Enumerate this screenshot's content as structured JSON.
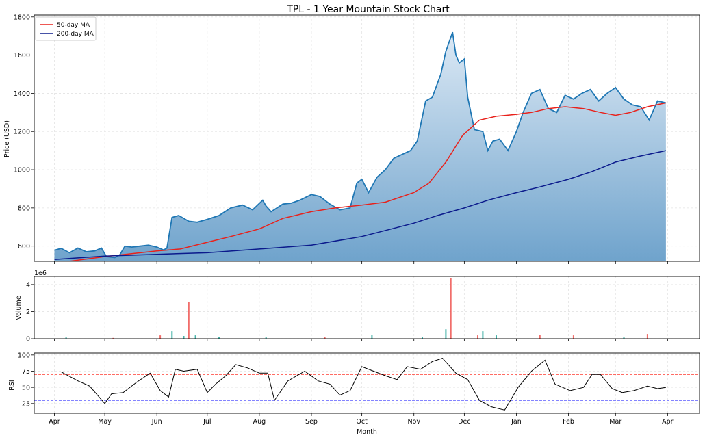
{
  "chart_data": [
    {
      "type": "area",
      "panel": "price",
      "title": "TPL - 1 Year Mountain Stock Chart",
      "ylabel": "Price (USD)",
      "ylim": [
        520,
        1810
      ],
      "yticks": [
        600,
        800,
        1000,
        1200,
        1400,
        1600,
        1800
      ],
      "grid": true,
      "legend": {
        "placement": "top-left",
        "entries": [
          "50-day MA",
          "200-day MA"
        ]
      },
      "colors": {
        "price": "#1f77b4",
        "ma50": "#e8211b",
        "ma200": "#0b1a8c",
        "fill_top": "#dce9f5",
        "fill_bottom": "#6fa3cc"
      },
      "series": [
        {
          "name": "Price",
          "x": [
            "2024-04-01",
            "2024-04-05",
            "2024-04-10",
            "2024-04-15",
            "2024-04-20",
            "2024-04-25",
            "2024-04-29",
            "2024-05-02",
            "2024-05-07",
            "2024-05-10",
            "2024-05-13",
            "2024-05-17",
            "2024-05-22",
            "2024-05-27",
            "2024-06-01",
            "2024-06-05",
            "2024-06-07",
            "2024-06-10",
            "2024-06-14",
            "2024-06-20",
            "2024-06-25",
            "2024-07-01",
            "2024-07-08",
            "2024-07-15",
            "2024-07-22",
            "2024-07-28",
            "2024-08-03",
            "2024-08-05",
            "2024-08-08",
            "2024-08-15",
            "2024-08-20",
            "2024-08-25",
            "2024-09-01",
            "2024-09-06",
            "2024-09-12",
            "2024-09-18",
            "2024-09-24",
            "2024-09-28",
            "2024-10-01",
            "2024-10-05",
            "2024-10-10",
            "2024-10-15",
            "2024-10-20",
            "2024-10-25",
            "2024-10-30",
            "2024-11-03",
            "2024-11-08",
            "2024-11-12",
            "2024-11-17",
            "2024-11-20",
            "2024-11-24",
            "2024-11-26",
            "2024-11-28",
            "2024-12-01",
            "2024-12-03",
            "2024-12-07",
            "2024-12-12",
            "2024-12-15",
            "2024-12-18",
            "2024-12-22",
            "2024-12-27",
            "2025-01-01",
            "2025-01-05",
            "2025-01-10",
            "2025-01-15",
            "2025-01-20",
            "2025-01-25",
            "2025-01-30",
            "2025-02-04",
            "2025-02-09",
            "2025-02-14",
            "2025-02-19",
            "2025-02-24",
            "2025-03-01",
            "2025-03-06",
            "2025-03-11",
            "2025-03-16",
            "2025-03-21",
            "2025-03-26",
            "2025-03-31"
          ],
          "values": [
            578,
            588,
            565,
            590,
            570,
            575,
            590,
            545,
            540,
            555,
            600,
            595,
            600,
            605,
            595,
            580,
            590,
            750,
            760,
            730,
            725,
            740,
            760,
            800,
            815,
            790,
            840,
            810,
            780,
            820,
            825,
            840,
            870,
            860,
            820,
            790,
            800,
            930,
            950,
            880,
            960,
            1000,
            1060,
            1080,
            1100,
            1150,
            1360,
            1380,
            1500,
            1620,
            1720,
            1600,
            1560,
            1580,
            1380,
            1210,
            1200,
            1100,
            1150,
            1160,
            1100,
            1200,
            1300,
            1400,
            1420,
            1320,
            1300,
            1390,
            1370,
            1400,
            1420,
            1360,
            1400,
            1430,
            1370,
            1340,
            1330,
            1260,
            1360,
            1350
          ]
        },
        {
          "name": "50-day MA",
          "x": [
            "2024-04-01",
            "2024-05-01",
            "2024-06-01",
            "2024-06-15",
            "2024-07-01",
            "2024-07-15",
            "2024-08-01",
            "2024-08-15",
            "2024-09-01",
            "2024-09-15",
            "2024-10-01",
            "2024-10-15",
            "2024-11-01",
            "2024-11-10",
            "2024-11-20",
            "2024-11-30",
            "2024-12-10",
            "2024-12-20",
            "2025-01-01",
            "2025-01-10",
            "2025-01-20",
            "2025-01-30",
            "2025-02-10",
            "2025-02-20",
            "2025-03-01",
            "2025-03-10",
            "2025-03-20",
            "2025-03-31"
          ],
          "values": [
            510,
            545,
            575,
            585,
            620,
            650,
            690,
            745,
            780,
            800,
            815,
            830,
            880,
            930,
            1040,
            1180,
            1260,
            1280,
            1290,
            1300,
            1320,
            1330,
            1320,
            1300,
            1285,
            1300,
            1330,
            1350
          ]
        },
        {
          "name": "200-day MA",
          "x": [
            "2024-04-01",
            "2024-05-01",
            "2024-06-01",
            "2024-07-01",
            "2024-08-01",
            "2024-09-01",
            "2024-10-01",
            "2024-11-01",
            "2024-11-15",
            "2024-12-01",
            "2024-12-15",
            "2025-01-01",
            "2025-01-15",
            "2025-02-01",
            "2025-02-15",
            "2025-03-01",
            "2025-03-15",
            "2025-03-31"
          ],
          "values": [
            530,
            548,
            557,
            565,
            585,
            605,
            650,
            720,
            760,
            800,
            840,
            880,
            910,
            950,
            990,
            1040,
            1070,
            1100
          ]
        }
      ]
    },
    {
      "type": "bar",
      "panel": "volume",
      "ylabel": "Volume",
      "multiplier": "1e6",
      "ylim": [
        0,
        4.6
      ],
      "yticks": [
        0,
        2,
        4
      ],
      "grid": true,
      "colors": {
        "up": "#26a69a",
        "down": "#ef5350"
      },
      "x": [
        "2024-04-08",
        "2024-05-06",
        "2024-06-03",
        "2024-06-10",
        "2024-06-17",
        "2024-06-20",
        "2024-06-24",
        "2024-07-08",
        "2024-08-05",
        "2024-09-09",
        "2024-10-07",
        "2024-11-06",
        "2024-11-20",
        "2024-11-23",
        "2024-12-09",
        "2024-12-12",
        "2024-12-20",
        "2025-01-15",
        "2025-02-04",
        "2025-03-06",
        "2025-03-20"
      ],
      "values": [
        0.1,
        0.06,
        0.25,
        0.55,
        0.2,
        2.7,
        0.25,
        0.12,
        0.15,
        0.1,
        0.3,
        0.15,
        0.7,
        4.5,
        0.25,
        0.55,
        0.25,
        0.3,
        0.25,
        0.15,
        0.35
      ],
      "directions": [
        "up",
        "down",
        "down",
        "up",
        "up",
        "down",
        "up",
        "up",
        "up",
        "down",
        "up",
        "up",
        "up",
        "down",
        "down",
        "up",
        "up",
        "down",
        "down",
        "up",
        "down"
      ]
    },
    {
      "type": "line",
      "panel": "rsi",
      "ylabel": "RSI",
      "xlabel": "Month",
      "ylim": [
        10,
        103
      ],
      "yticks": [
        25,
        50,
        75,
        100
      ],
      "reference_lines": [
        {
          "value": 70,
          "color": "#ff3b30"
        },
        {
          "value": 30,
          "color": "#3b3bff"
        }
      ],
      "grid": true,
      "colors": {
        "line": "#000000"
      },
      "x": [
        "2024-04-05",
        "2024-04-15",
        "2024-04-22",
        "2024-05-01",
        "2024-05-05",
        "2024-05-12",
        "2024-05-20",
        "2024-05-28",
        "2024-06-03",
        "2024-06-08",
        "2024-06-12",
        "2024-06-17",
        "2024-06-25",
        "2024-07-01",
        "2024-07-06",
        "2024-07-12",
        "2024-07-18",
        "2024-07-25",
        "2024-08-01",
        "2024-08-06",
        "2024-08-10",
        "2024-08-18",
        "2024-08-28",
        "2024-09-05",
        "2024-09-12",
        "2024-09-18",
        "2024-09-24",
        "2024-10-01",
        "2024-10-08",
        "2024-10-15",
        "2024-10-22",
        "2024-10-28",
        "2024-11-05",
        "2024-11-12",
        "2024-11-18",
        "2024-11-26",
        "2024-12-03",
        "2024-12-10",
        "2024-12-17",
        "2024-12-25",
        "2025-01-02",
        "2025-01-10",
        "2025-01-18",
        "2025-01-24",
        "2025-02-02",
        "2025-02-10",
        "2025-02-15",
        "2025-02-20",
        "2025-02-27",
        "2025-03-05",
        "2025-03-12",
        "2025-03-20",
        "2025-03-26",
        "2025-03-31"
      ],
      "values": [
        74,
        60,
        52,
        25,
        40,
        42,
        58,
        72,
        45,
        35,
        78,
        75,
        78,
        42,
        55,
        68,
        85,
        80,
        72,
        72,
        30,
        60,
        75,
        60,
        55,
        38,
        45,
        82,
        75,
        68,
        62,
        82,
        78,
        90,
        95,
        72,
        62,
        30,
        20,
        15,
        50,
        75,
        92,
        55,
        45,
        50,
        70,
        70,
        48,
        42,
        45,
        52,
        48,
        50
      ]
    }
  ],
  "x_axis": {
    "xlabel": "Month",
    "months": [
      {
        "label": "Apr",
        "date": "2024-04-01"
      },
      {
        "label": "May",
        "date": "2024-05-01"
      },
      {
        "label": "Jun",
        "date": "2024-06-01"
      },
      {
        "label": "Jul",
        "date": "2024-07-01"
      },
      {
        "label": "Aug",
        "date": "2024-08-01"
      },
      {
        "label": "Sep",
        "date": "2024-09-01"
      },
      {
        "label": "Oct",
        "date": "2024-10-01"
      },
      {
        "label": "Nov",
        "date": "2024-11-01"
      },
      {
        "label": "Dec",
        "date": "2024-12-01"
      },
      {
        "label": "Jan",
        "date": "2025-01-01"
      },
      {
        "label": "Feb",
        "date": "2025-02-01"
      },
      {
        "label": "Mar",
        "date": "2025-03-01"
      },
      {
        "label": "Apr",
        "date": "2025-04-01"
      }
    ],
    "range": [
      "2024-03-20",
      "2025-04-20"
    ]
  }
}
